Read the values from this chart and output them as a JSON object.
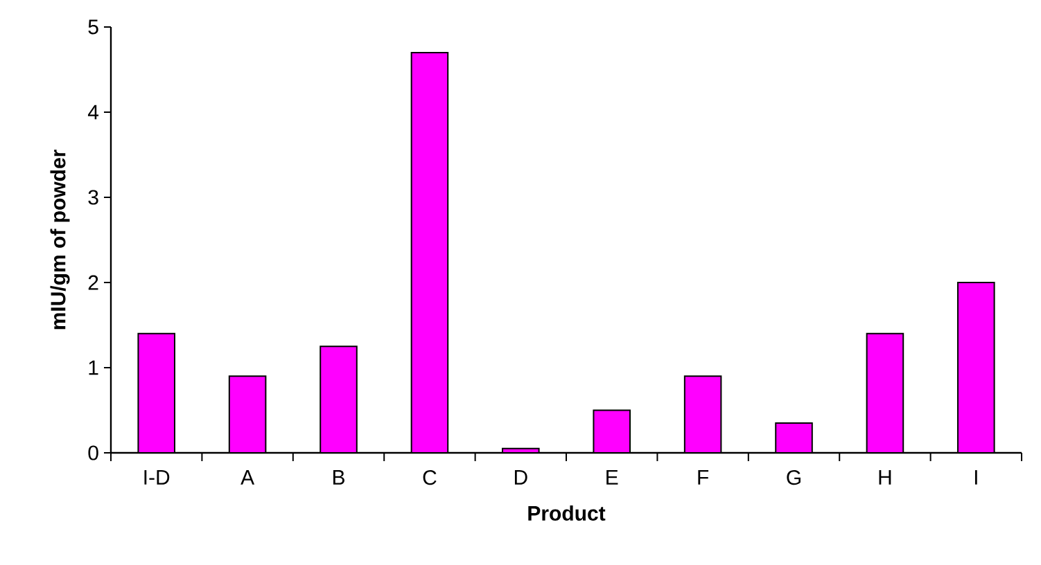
{
  "chart_data": {
    "type": "bar",
    "xlabel": "Product",
    "ylabel": "mIU/gm of powder",
    "categories": [
      "I-D",
      "A",
      "B",
      "C",
      "D",
      "E",
      "F",
      "G",
      "H",
      "I"
    ],
    "values": [
      1.4,
      0.9,
      1.25,
      4.7,
      0.05,
      0.5,
      0.9,
      0.35,
      1.4,
      2.0
    ],
    "color": "#ff00ff",
    "ylim": [
      0,
      5
    ],
    "yticks": [
      0,
      1,
      2,
      3,
      4,
      5
    ]
  }
}
